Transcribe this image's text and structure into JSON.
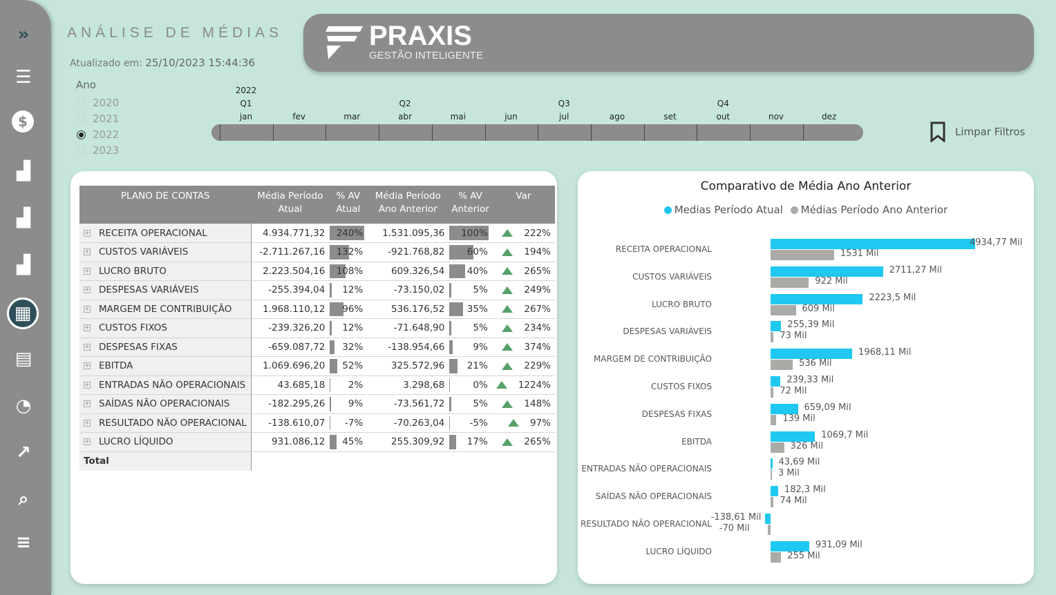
{
  "header": {
    "title": "ANÁLISE DE MÉDIAS",
    "updated_label": "Atualizado em:",
    "updated_value": "25/10/2023 15:44:36",
    "logo_brand": "PRAXIS",
    "logo_sub": "GESTÃO INTELIGENTE"
  },
  "sidebar": {
    "icons": [
      "expand-icon",
      "list-icon",
      "dollar-icon",
      "bar-chart-icon",
      "bar-chart-icon",
      "bar-chart-icon",
      "calculator-icon",
      "table-icon",
      "pie-chart-icon",
      "trend-icon",
      "search-icon",
      "sliders-icon"
    ],
    "active": "calculator-icon"
  },
  "year_filter": {
    "label": "Ano",
    "options": [
      "2020",
      "2021",
      "2022",
      "2023"
    ],
    "selected": "2022"
  },
  "timeline": {
    "year": "2022",
    "quarters": [
      "Q1",
      "Q2",
      "Q3",
      "Q4"
    ],
    "months": [
      "jan",
      "fev",
      "mar",
      "abr",
      "mai",
      "jun",
      "jul",
      "ago",
      "set",
      "out",
      "nov",
      "dez"
    ]
  },
  "clear_filters": "Limpar Filtros",
  "table": {
    "headers": [
      "PLANO DE CONTAS",
      "Média Período Atual",
      "% AV Atual",
      "Média Período Ano Anterior",
      "% AV Anterior",
      "Var"
    ],
    "rows": [
      {
        "name": "RECEITA OPERACIONAL",
        "atual": "4.934.771,32",
        "av_atual": "240%",
        "av_atual_n": 240,
        "anterior": "1.531.095,36",
        "av_ant": "100%",
        "av_ant_n": 100,
        "var": "222%"
      },
      {
        "name": "CUSTOS VARIÁVEIS",
        "atual": "-2.711.267,16",
        "av_atual": "132%",
        "av_atual_n": 132,
        "anterior": "-921.768,82",
        "av_ant": "60%",
        "av_ant_n": 60,
        "var": "194%"
      },
      {
        "name": "LUCRO BRUTO",
        "atual": "2.223.504,16",
        "av_atual": "108%",
        "av_atual_n": 108,
        "anterior": "609.326,54",
        "av_ant": "40%",
        "av_ant_n": 40,
        "var": "265%"
      },
      {
        "name": "DESPESAS VARIÁVEIS",
        "atual": "-255.394,04",
        "av_atual": "12%",
        "av_atual_n": 12,
        "anterior": "-73.150,02",
        "av_ant": "5%",
        "av_ant_n": 5,
        "var": "249%"
      },
      {
        "name": "MARGEM DE CONTRIBUIÇÃO",
        "atual": "1.968.110,12",
        "av_atual": "96%",
        "av_atual_n": 96,
        "anterior": "536.176,52",
        "av_ant": "35%",
        "av_ant_n": 35,
        "var": "267%"
      },
      {
        "name": "CUSTOS FIXOS",
        "atual": "-239.326,20",
        "av_atual": "12%",
        "av_atual_n": 12,
        "anterior": "-71.648,90",
        "av_ant": "5%",
        "av_ant_n": 5,
        "var": "234%"
      },
      {
        "name": "DESPESAS FIXAS",
        "atual": "-659.087,72",
        "av_atual": "32%",
        "av_atual_n": 32,
        "anterior": "-138.954,66",
        "av_ant": "9%",
        "av_ant_n": 9,
        "var": "374%"
      },
      {
        "name": "EBITDA",
        "atual": "1.069.696,20",
        "av_atual": "52%",
        "av_atual_n": 52,
        "anterior": "325.572,96",
        "av_ant": "21%",
        "av_ant_n": 21,
        "var": "229%"
      },
      {
        "name": "ENTRADAS NÃO OPERACIONAIS",
        "atual": "43.685,18",
        "av_atual": "2%",
        "av_atual_n": 2,
        "anterior": "3.298,68",
        "av_ant": "0%",
        "av_ant_n": 0,
        "var": "1224%"
      },
      {
        "name": "SAÍDAS NÃO OPERACIONAIS",
        "atual": "-182.295,26",
        "av_atual": "9%",
        "av_atual_n": 9,
        "anterior": "-73.561,72",
        "av_ant": "5%",
        "av_ant_n": 5,
        "var": "148%"
      },
      {
        "name": "RESULTADO NÃO OPERACIONAL",
        "atual": "-138.610,07",
        "av_atual": "-7%",
        "av_atual_n": -7,
        "anterior": "-70.263,04",
        "av_ant": "-5%",
        "av_ant_n": -5,
        "var": "97%"
      },
      {
        "name": "LUCRO LÍQUIDO",
        "atual": "931.086,12",
        "av_atual": "45%",
        "av_atual_n": 45,
        "anterior": "255.309,92",
        "av_ant": "17%",
        "av_ant_n": 17,
        "var": "265%"
      }
    ],
    "total_label": "Total",
    "var_icon": "triangle-up-icon",
    "var_color": "#3a8f4d"
  },
  "chart_data": {
    "type": "bar",
    "orientation": "horizontal",
    "title": "Comparativo de Média Ano Anterior",
    "categories": [
      "RECEITA OPERACIONAL",
      "CUSTOS VARIÁVEIS",
      "LUCRO BRUTO",
      "DESPESAS VARIÁVEIS",
      "MARGEM DE CONTRIBUIÇÃO",
      "CUSTOS FIXOS",
      "DESPESAS FIXAS",
      "EBITDA",
      "ENTRADAS NÃO OPERACIONAIS",
      "SAÍDAS NÃO OPERACIONAIS",
      "RESULTADO NÃO OPERACIONAL",
      "LUCRO LÍQUIDO"
    ],
    "series": [
      {
        "name": "Medias Período Atual",
        "color": "#1ec8f0",
        "values": [
          4934.77,
          2711.27,
          2223.5,
          255.39,
          1968.11,
          239.33,
          659.09,
          1069.7,
          43.69,
          182.3,
          -138.61,
          931.09
        ],
        "labels": [
          "4934,77 Mil",
          "2711,27 Mil",
          "2223,5 Mil",
          "255,39 Mil",
          "1968,11 Mil",
          "239,33 Mil",
          "659,09 Mil",
          "1069,7 Mil",
          "43,69 Mil",
          "182,3 Mil",
          "-138,61 Mil",
          "931,09 Mil"
        ]
      },
      {
        "name": "Médias Período Ano Anterior",
        "color": "#aaaaa6",
        "values": [
          1531,
          922,
          609,
          73,
          536,
          72,
          139,
          326,
          3,
          74,
          -70,
          255
        ],
        "labels": [
          "1531 Mil",
          "922 Mil",
          "609 Mil",
          "73 Mil",
          "536 Mil",
          "72 Mil",
          "139 Mil",
          "326 Mil",
          "3 Mil",
          "74 Mil",
          "-70 Mil",
          "255 Mil"
        ]
      }
    ],
    "legend": "top-center",
    "unit": "Mil"
  }
}
